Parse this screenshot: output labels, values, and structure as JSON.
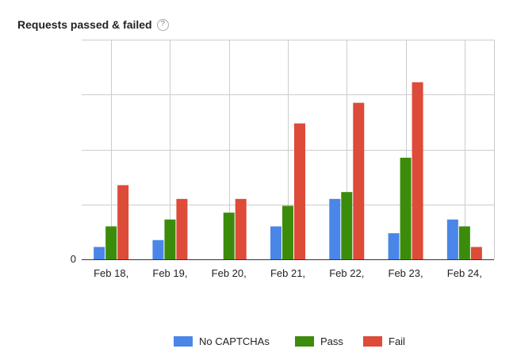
{
  "header": {
    "title": "Requests passed & failed",
    "help_glyph": "?"
  },
  "chart_data": {
    "type": "bar",
    "categories": [
      "Feb 18,",
      "Feb 19,",
      "Feb 20,",
      "Feb 21,",
      "Feb 22,",
      "Feb 23,",
      "Feb 24,"
    ],
    "series": [
      {
        "name": "No CAPTCHAs",
        "color": "#4a86e8",
        "values": [
          0.9,
          1.4,
          0,
          2.4,
          4.4,
          1.9,
          2.9
        ]
      },
      {
        "name": "Pass",
        "color": "#3c8c0c",
        "values": [
          2.4,
          2.9,
          3.4,
          3.9,
          4.9,
          7.4,
          2.4
        ]
      },
      {
        "name": "Fail",
        "color": "#dd4b39",
        "values": [
          5.4,
          4.4,
          4.4,
          9.9,
          11.4,
          12.9,
          0.9
        ]
      }
    ],
    "ylim": [
      0,
      16
    ],
    "y_tick_labels": [
      "0"
    ],
    "grid": true,
    "legend_position": "bottom"
  }
}
